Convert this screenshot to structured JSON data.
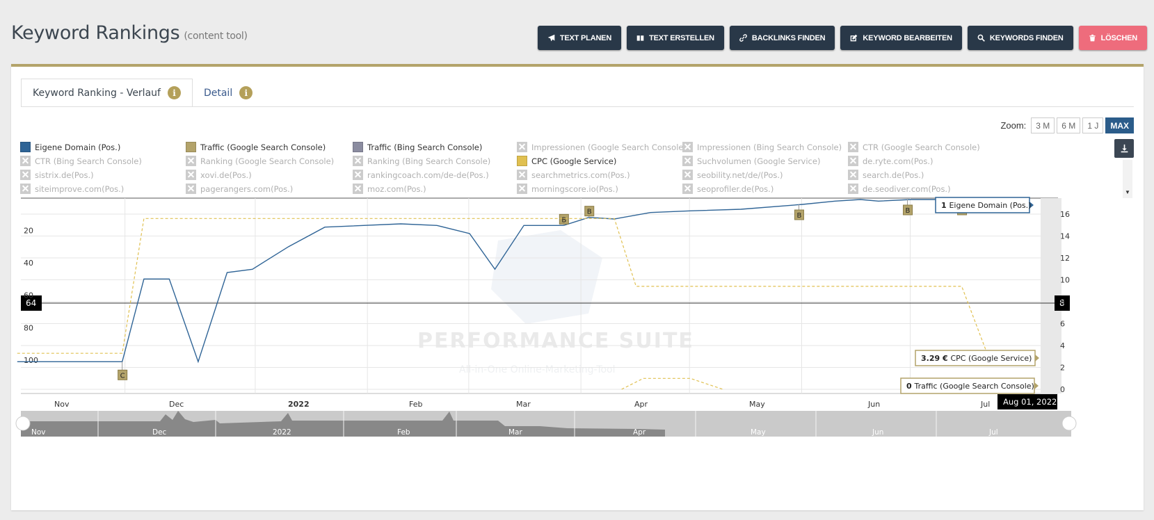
{
  "header": {
    "title": "Keyword Rankings",
    "subtitle": "(content tool)"
  },
  "actions": [
    {
      "label": "TEXT PLANEN",
      "icon": "paper-plane-icon"
    },
    {
      "label": "TEXT ERSTELLEN",
      "icon": "book-icon"
    },
    {
      "label": "BACKLINKS FINDEN",
      "icon": "link-icon"
    },
    {
      "label": "KEYWORD BEARBEITEN",
      "icon": "edit-icon"
    },
    {
      "label": "KEYWORDS FINDEN",
      "icon": "search-icon"
    },
    {
      "label": "LÖSCHEN",
      "icon": "trash-icon"
    }
  ],
  "tabs": [
    {
      "label": "Keyword Ranking - Verlauf",
      "active": true
    },
    {
      "label": "Detail",
      "active": false
    }
  ],
  "zoom": {
    "label": "Zoom:",
    "options": [
      "3 M",
      "6 M",
      "1 J",
      "MAX"
    ],
    "selected": "MAX"
  },
  "legend": [
    {
      "label": "Eigene Domain (Pos.)",
      "color": "#2f6496",
      "enabled": true
    },
    {
      "label": "Traffic (Google Search Console)",
      "color": "#b3a36a",
      "enabled": true
    },
    {
      "label": "Traffic (Bing Search Console)",
      "color": "#8b8ca0",
      "enabled": true
    },
    {
      "label": "Impressionen (Google Search Console)",
      "enabled": false
    },
    {
      "label": "Impressionen (Bing Search Console)",
      "enabled": false
    },
    {
      "label": "CTR (Google Search Console)",
      "enabled": false
    },
    {
      "label": "CTR (Bing Search Console)",
      "enabled": false
    },
    {
      "label": "Ranking (Google Search Console)",
      "enabled": false
    },
    {
      "label": "Ranking (Bing Search Console)",
      "enabled": false
    },
    {
      "label": "CPC (Google Service)",
      "color": "#e0c050",
      "enabled": true
    },
    {
      "label": "Suchvolumen (Google Service)",
      "enabled": false
    },
    {
      "label": "de.ryte.com(Pos.)",
      "enabled": false
    },
    {
      "label": "sistrix.de(Pos.)",
      "enabled": false
    },
    {
      "label": "xovi.de(Pos.)",
      "enabled": false
    },
    {
      "label": "rankingcoach.com/de-de(Pos.)",
      "enabled": false
    },
    {
      "label": "searchmetrics.com(Pos.)",
      "enabled": false
    },
    {
      "label": "seobility.net/de/(Pos.)",
      "enabled": false
    },
    {
      "label": "search.de(Pos.)",
      "enabled": false
    },
    {
      "label": "siteimprove.com(Pos.)",
      "enabled": false
    },
    {
      "label": "pagerangers.com(Pos.)",
      "enabled": false
    },
    {
      "label": "moz.com(Pos.)",
      "enabled": false
    },
    {
      "label": "morningscore.io(Pos.)",
      "enabled": false
    },
    {
      "label": "seoprofiler.de(Pos.)",
      "enabled": false
    },
    {
      "label": "de.seodiver.com(Pos.)",
      "enabled": false
    }
  ],
  "watermark": {
    "title": "PERFORMANCE SUITE",
    "tagline": "All-in-One Online-Marketing-Tool"
  },
  "chart_data": {
    "type": "line",
    "x_range": [
      "2021-11-01",
      "2022-08-01"
    ],
    "left_axis": {
      "ticks": [
        20,
        40,
        60,
        80,
        100
      ],
      "reversed": true,
      "range": [
        1,
        118
      ]
    },
    "right_axis": {
      "ticks": [
        0,
        2,
        4,
        6,
        8,
        10,
        12,
        14,
        16
      ],
      "range": [
        0,
        18
      ]
    },
    "x_ticks": [
      "Nov",
      "Dec",
      "2022",
      "Feb",
      "Mar",
      "Apr",
      "May",
      "Jun",
      "Jul"
    ],
    "crosshair": {
      "left_value": "64",
      "right_value": "8",
      "date_label": "Aug 01, 2022"
    },
    "series": [
      {
        "name": "Eigene Domain (Pos.)",
        "axis": "left",
        "color": "#2f6496",
        "points": [
          [
            "2021-10-27",
            101
          ],
          [
            "2021-11-25",
            101
          ],
          [
            "2021-12-01",
            50
          ],
          [
            "2021-12-08",
            50
          ],
          [
            "2021-12-16",
            101
          ],
          [
            "2021-12-24",
            46
          ],
          [
            "2021-12-31",
            44
          ],
          [
            "2022-01-10",
            30
          ],
          [
            "2022-01-20",
            18
          ],
          [
            "2022-02-10",
            16
          ],
          [
            "2022-02-20",
            17
          ],
          [
            "2022-03-01",
            22
          ],
          [
            "2022-03-08",
            44
          ],
          [
            "2022-03-16",
            17
          ],
          [
            "2022-03-27",
            17
          ],
          [
            "2022-04-03",
            12
          ],
          [
            "2022-04-10",
            13
          ],
          [
            "2022-04-20",
            9
          ],
          [
            "2022-05-01",
            8
          ],
          [
            "2022-05-15",
            7
          ],
          [
            "2022-06-01",
            4
          ],
          [
            "2022-06-10",
            2
          ],
          [
            "2022-06-17",
            1
          ],
          [
            "2022-06-22",
            2
          ],
          [
            "2022-07-01",
            1
          ],
          [
            "2022-08-01",
            1
          ]
        ],
        "annotations": [
          {
            "date": "2021-11-25",
            "label": "C"
          },
          {
            "date": "2022-03-27",
            "label": "B"
          },
          {
            "date": "2022-04-03",
            "label": "B"
          },
          {
            "date": "2022-05-31",
            "label": "B"
          },
          {
            "date": "2022-06-30",
            "label": "B"
          },
          {
            "date": "2022-07-15",
            "label": "B"
          }
        ]
      },
      {
        "name": "CPC (Google Service)",
        "axis": "right",
        "color": "#e0c050",
        "dashed": true,
        "points": [
          [
            "2021-10-27",
            3.29
          ],
          [
            "2021-11-25",
            3.29
          ],
          [
            "2021-12-01",
            15.6
          ],
          [
            "2022-04-10",
            15.6
          ],
          [
            "2022-04-16",
            9.4
          ],
          [
            "2022-07-15",
            9.4
          ],
          [
            "2022-07-22",
            3.29
          ],
          [
            "2022-08-01",
            3.29
          ]
        ]
      },
      {
        "name": "Traffic (Google Search Console)",
        "axis": "right",
        "color": "#e0c050",
        "dashed": true,
        "points": [
          [
            "2022-04-12",
            0
          ],
          [
            "2022-04-18",
            1
          ],
          [
            "2022-05-01",
            1
          ],
          [
            "2022-05-10",
            0
          ]
        ]
      }
    ],
    "tooltips": [
      {
        "value": "1",
        "series": "Eigene Domain (Pos.)"
      },
      {
        "value": "3.29 €",
        "series": "CPC (Google Service)"
      },
      {
        "value": "0",
        "series": "Traffic (Google Search Console)"
      }
    ],
    "navigator_labels": [
      "Nov",
      "Dec",
      "2022",
      "Feb",
      "Mar",
      "Apr",
      "May",
      "Jun",
      "Jul"
    ]
  }
}
